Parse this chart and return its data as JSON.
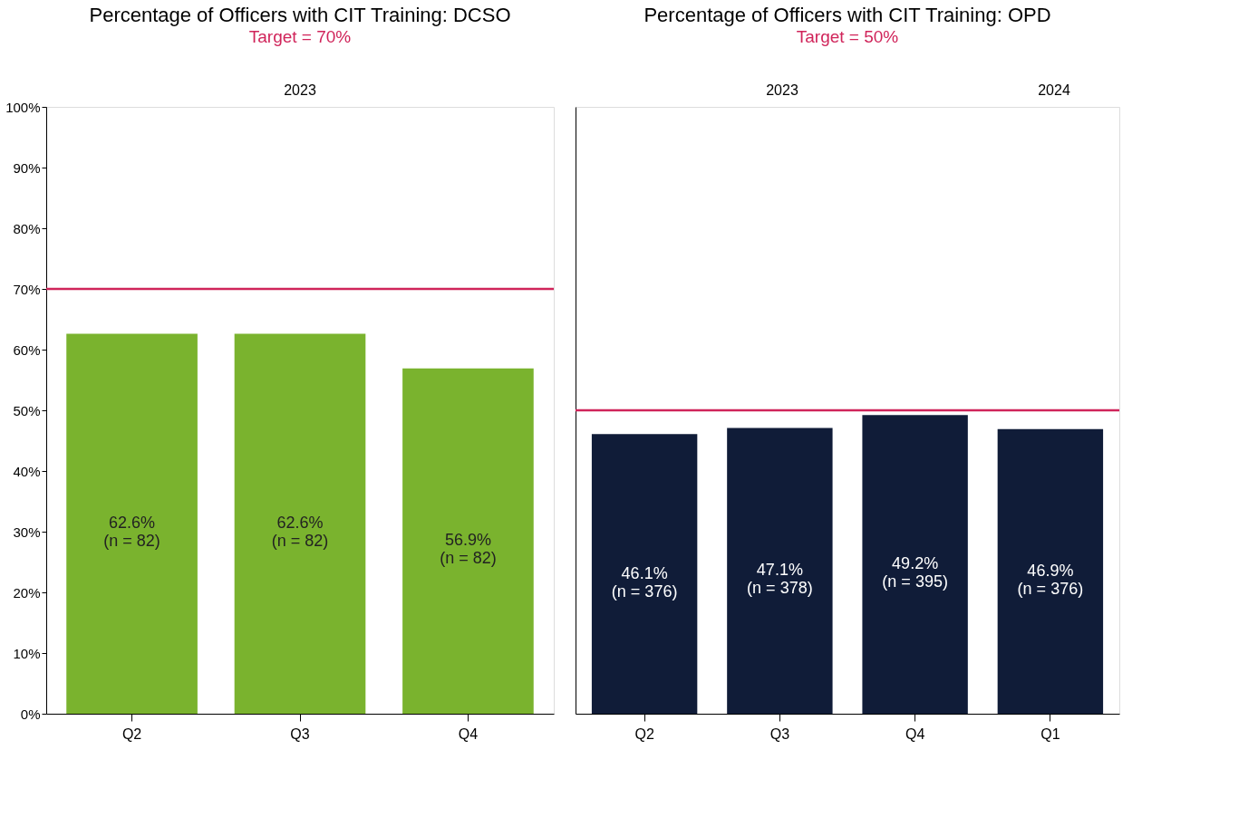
{
  "chart_data": [
    {
      "type": "bar",
      "title": "Percentage of Officers with CIT Training: DCSO",
      "subtitle": "Target = 70%",
      "categories": [
        "Q2",
        "Q3",
        "Q4"
      ],
      "series": [
        {
          "color": "#7ab32e",
          "values": [
            62.6,
            62.6,
            56.9
          ]
        }
      ],
      "value_labels": [
        "62.6%\n(n = 82)",
        "62.6%\n(n = 82)",
        "56.9%\n(n = 82)"
      ],
      "ylim": [
        0,
        100
      ],
      "yticks": [
        {
          "value": 0,
          "label": "0%"
        },
        {
          "value": 10,
          "label": "10%"
        },
        {
          "value": 20,
          "label": "20%"
        },
        {
          "value": 30,
          "label": "30%"
        },
        {
          "value": 40,
          "label": "40%"
        },
        {
          "value": 50,
          "label": "50%"
        },
        {
          "value": 60,
          "label": "60%"
        },
        {
          "value": 70,
          "label": "70%"
        },
        {
          "value": 80,
          "label": "80%"
        },
        {
          "value": 90,
          "label": "90%"
        },
        {
          "value": 100,
          "label": "100%"
        }
      ],
      "ref_lines": [
        {
          "axis": "y",
          "value": 70,
          "color": "#d0245a"
        }
      ],
      "annotations": [
        "2023"
      ],
      "grid": false
    },
    {
      "type": "bar",
      "title": "Percentage of Officers with CIT Training: OPD",
      "subtitle": "Target = 50%",
      "categories": [
        "Q2",
        "Q3",
        "Q4",
        "Q1"
      ],
      "series": [
        {
          "color": "#101c38",
          "values": [
            46.1,
            47.1,
            49.2,
            46.9
          ]
        }
      ],
      "value_labels": [
        "46.1%\n(n = 376)",
        "47.1%\n(n = 378)",
        "49.2%\n(n = 395)",
        "46.9%\n(n = 376)"
      ],
      "ylim": [
        0,
        100
      ],
      "tick_labels": "x",
      "ref_lines": [
        {
          "axis": "y",
          "value": 50,
          "color": "#d0245a"
        }
      ],
      "annotations": [
        "2023",
        "2024"
      ],
      "grid": false
    }
  ]
}
